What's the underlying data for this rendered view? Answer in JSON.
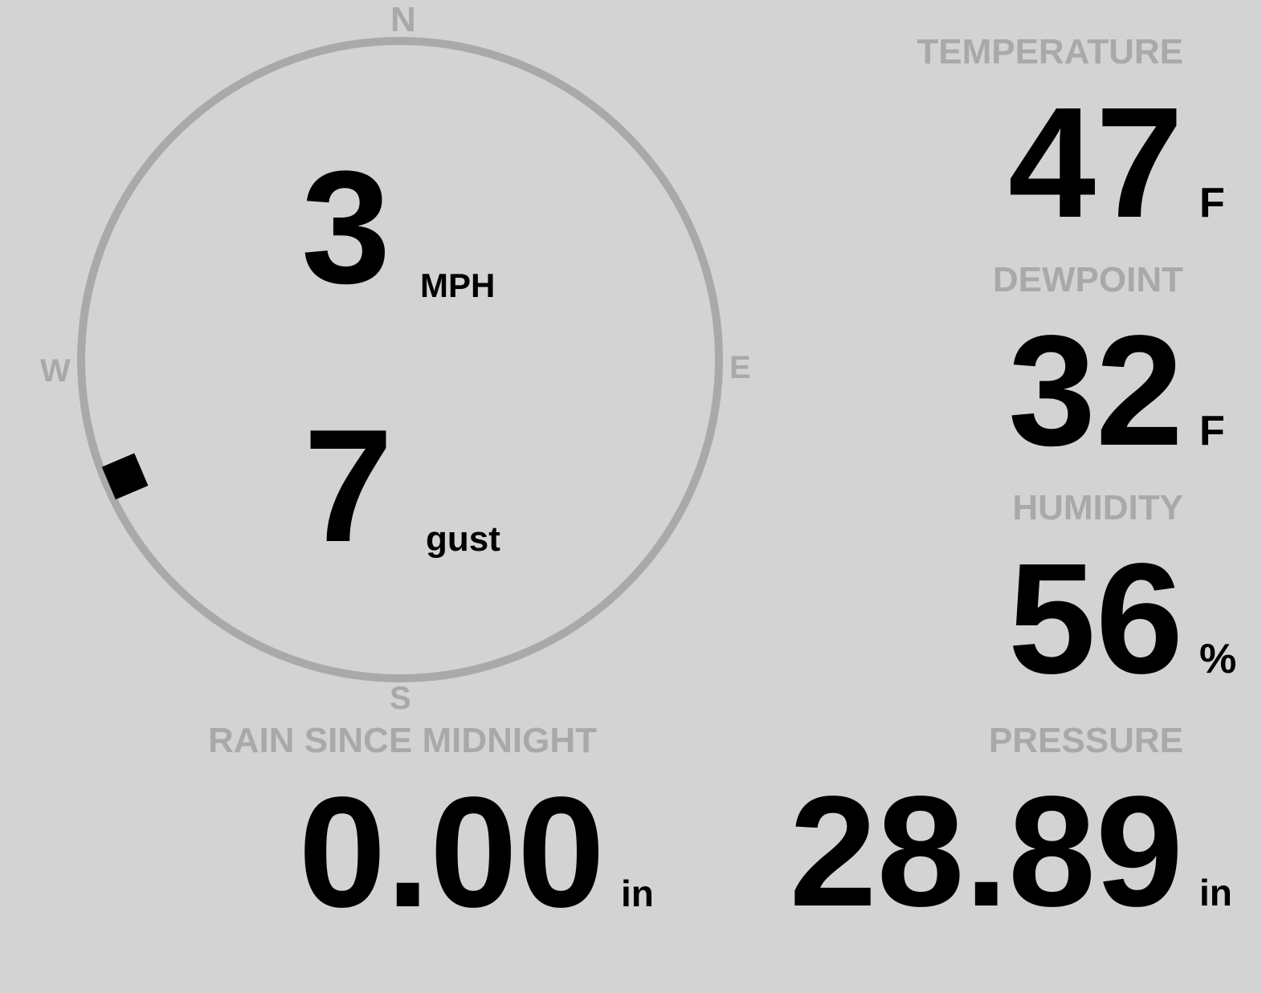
{
  "colors": {
    "background": "#d3d3d3",
    "label": "#a9a9a9",
    "value": "#000000"
  },
  "wind": {
    "compass": {
      "n": "N",
      "e": "E",
      "s": "S",
      "w": "W"
    },
    "direction_deg": 247,
    "speed": "3",
    "speed_unit": "MPH",
    "gust": "7",
    "gust_unit": "gust"
  },
  "temperature": {
    "label": "TEMPERATURE",
    "value": "47",
    "unit": "F"
  },
  "dewpoint": {
    "label": "DEWPOINT",
    "value": "32",
    "unit": "F"
  },
  "humidity": {
    "label": "HUMIDITY",
    "value": "56",
    "unit": "%"
  },
  "rain": {
    "label": "RAIN SINCE MIDNIGHT",
    "value": "0.00",
    "unit": "in"
  },
  "pressure": {
    "label": "PRESSURE",
    "value": "28.89",
    "unit": "in"
  }
}
